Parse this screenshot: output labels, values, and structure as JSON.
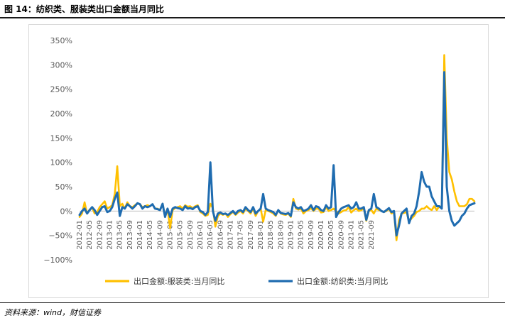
{
  "figure": {
    "title": "图 14：纺织类、服装类出口金额当月同比",
    "source": "资料来源：wind，财信证券"
  },
  "chart_data": {
    "type": "line",
    "ylabel": "",
    "xlabel": "",
    "ylim": [
      -1.0,
      3.5
    ],
    "y_ticks": [
      -1.0,
      -0.5,
      0.0,
      0.5,
      1.0,
      1.5,
      2.0,
      2.5,
      3.0,
      3.5
    ],
    "y_tick_labels": [
      "−100%",
      "−50%",
      "0%",
      "50%",
      "100%",
      "150%",
      "200%",
      "250%",
      "300%",
      "350%"
    ],
    "x_tick_labels": [
      "2012-01",
      "2012-05",
      "2012-09",
      "2013-01",
      "2013-05",
      "2013-09",
      "2014-01",
      "2014-05",
      "2014-09",
      "2015-01",
      "2015-05",
      "2015-09",
      "2016-01",
      "2016-05",
      "2016-09",
      "2017-01",
      "2017-05",
      "2017-09",
      "2018-01",
      "2018-05",
      "2018-09",
      "2019-01",
      "2019-05",
      "2019-09",
      "2020-01",
      "2020-05",
      "2020-09",
      "2021-01",
      "2021-05",
      "2021-09"
    ],
    "x_start": "2012-01",
    "x_end": "2021-09",
    "legend_position": "bottom",
    "grid": false,
    "series": [
      {
        "name": "出口金额:服装类:当月同比",
        "color": "#FFC000",
        "values": [
          -0.12,
          -0.05,
          0.18,
          -0.05,
          0.03,
          0.07,
          -0.05,
          -0.02,
          0.08,
          0.14,
          0.2,
          0.05,
          0.08,
          0.12,
          0.35,
          0.92,
          0.1,
          0.15,
          0.05,
          0.18,
          0.1,
          0.08,
          0.12,
          0.16,
          0.14,
          0.08,
          0.1,
          0.12,
          0.1,
          0.14,
          0.05,
          0.05,
          0.02,
          0.15,
          -0.1,
          0.05,
          -0.35,
          0.02,
          0.06,
          0.08,
          0.1,
          0.05,
          0.12,
          0.09,
          0.1,
          0.06,
          0.1,
          0.12,
          -0.02,
          -0.05,
          -0.1,
          -0.08,
          0.15,
          0.06,
          -0.32,
          -0.1,
          -0.05,
          -0.08,
          -0.05,
          -0.12,
          -0.06,
          -0.02,
          -0.08,
          -0.03,
          0.0,
          -0.05,
          0.05,
          0.0,
          -0.05,
          0.05,
          -0.1,
          0.0,
          0.05,
          -0.22,
          0.02,
          0.0,
          -0.02,
          -0.05,
          -0.1,
          0.02,
          -0.05,
          -0.07,
          -0.08,
          -0.05,
          -0.12,
          0.25,
          0.05,
          0.03,
          0.05,
          -0.05,
          0.0,
          0.02,
          0.06,
          0.0,
          0.05,
          0.05,
          -0.03,
          -0.02,
          0.08,
          0.0,
          0.02,
          0.05,
          0.0,
          -0.05,
          -0.02,
          0.01,
          0.02,
          0.08,
          -0.03,
          0.02,
          0.05,
          0.0,
          0.02,
          0.05,
          -0.2,
          0.0,
          0.02,
          -0.05,
          0.05,
          0.02,
          0.0,
          -0.02,
          0.0,
          0.05,
          -0.05,
          -0.02,
          -0.6,
          -0.18,
          -0.05,
          -0.04,
          -0.02,
          -0.22,
          -0.15,
          -0.1,
          -0.02,
          0.0,
          0.05,
          0.05,
          0.1,
          0.05,
          0.02,
          0.1,
          0.02,
          0.1,
          0.08,
          3.2,
          1.5,
          0.8,
          0.65,
          0.4,
          0.2,
          0.1,
          0.1,
          0.1,
          0.14,
          0.25,
          0.25,
          0.2
        ]
      },
      {
        "name": "出口金额:纺织类:当月同比",
        "color": "#1F6CB0",
        "values": [
          -0.08,
          0.0,
          0.05,
          -0.05,
          0.02,
          0.08,
          0.02,
          -0.08,
          0.0,
          0.08,
          0.1,
          -0.02,
          0.0,
          0.08,
          0.25,
          0.38,
          -0.1,
          0.08,
          0.05,
          0.14,
          0.1,
          0.05,
          0.1,
          0.16,
          0.14,
          0.05,
          0.1,
          0.08,
          0.1,
          0.14,
          0.05,
          0.04,
          0.02,
          0.15,
          -0.12,
          0.05,
          -0.12,
          0.05,
          0.08,
          0.06,
          0.05,
          0.02,
          0.1,
          0.05,
          0.06,
          0.04,
          0.08,
          0.1,
          0.0,
          -0.02,
          -0.08,
          -0.02,
          1.0,
          0.0,
          -0.2,
          -0.05,
          -0.03,
          -0.06,
          -0.05,
          -0.08,
          -0.04,
          0.0,
          -0.06,
          0.0,
          0.02,
          -0.02,
          0.08,
          0.02,
          -0.02,
          0.08,
          -0.05,
          0.0,
          0.05,
          0.35,
          0.05,
          0.02,
          0.0,
          -0.02,
          -0.08,
          0.02,
          -0.04,
          -0.05,
          -0.06,
          -0.04,
          -0.1,
          0.18,
          0.08,
          0.05,
          0.08,
          0.0,
          0.02,
          0.05,
          0.12,
          0.02,
          0.1,
          0.08,
          0.02,
          0.0,
          0.12,
          0.05,
          0.08,
          0.94,
          -0.12,
          -0.02,
          0.05,
          0.08,
          0.1,
          0.12,
          0.05,
          0.08,
          0.18,
          0.05,
          0.05,
          0.08,
          -0.18,
          0.02,
          0.05,
          0.35,
          0.08,
          0.05,
          0.0,
          -0.02,
          0.02,
          0.06,
          -0.02,
          0.0,
          -0.5,
          -0.3,
          -0.05,
          0.0,
          0.05,
          -0.25,
          -0.1,
          -0.05,
          0.1,
          0.4,
          0.8,
          0.6,
          0.5,
          0.5,
          0.3,
          0.2,
          0.1,
          0.1,
          0.05,
          2.85,
          0.5,
          0.0,
          -0.2,
          -0.3,
          -0.25,
          -0.2,
          -0.1,
          -0.05,
          0.05,
          0.12,
          0.14,
          0.16
        ]
      }
    ]
  }
}
